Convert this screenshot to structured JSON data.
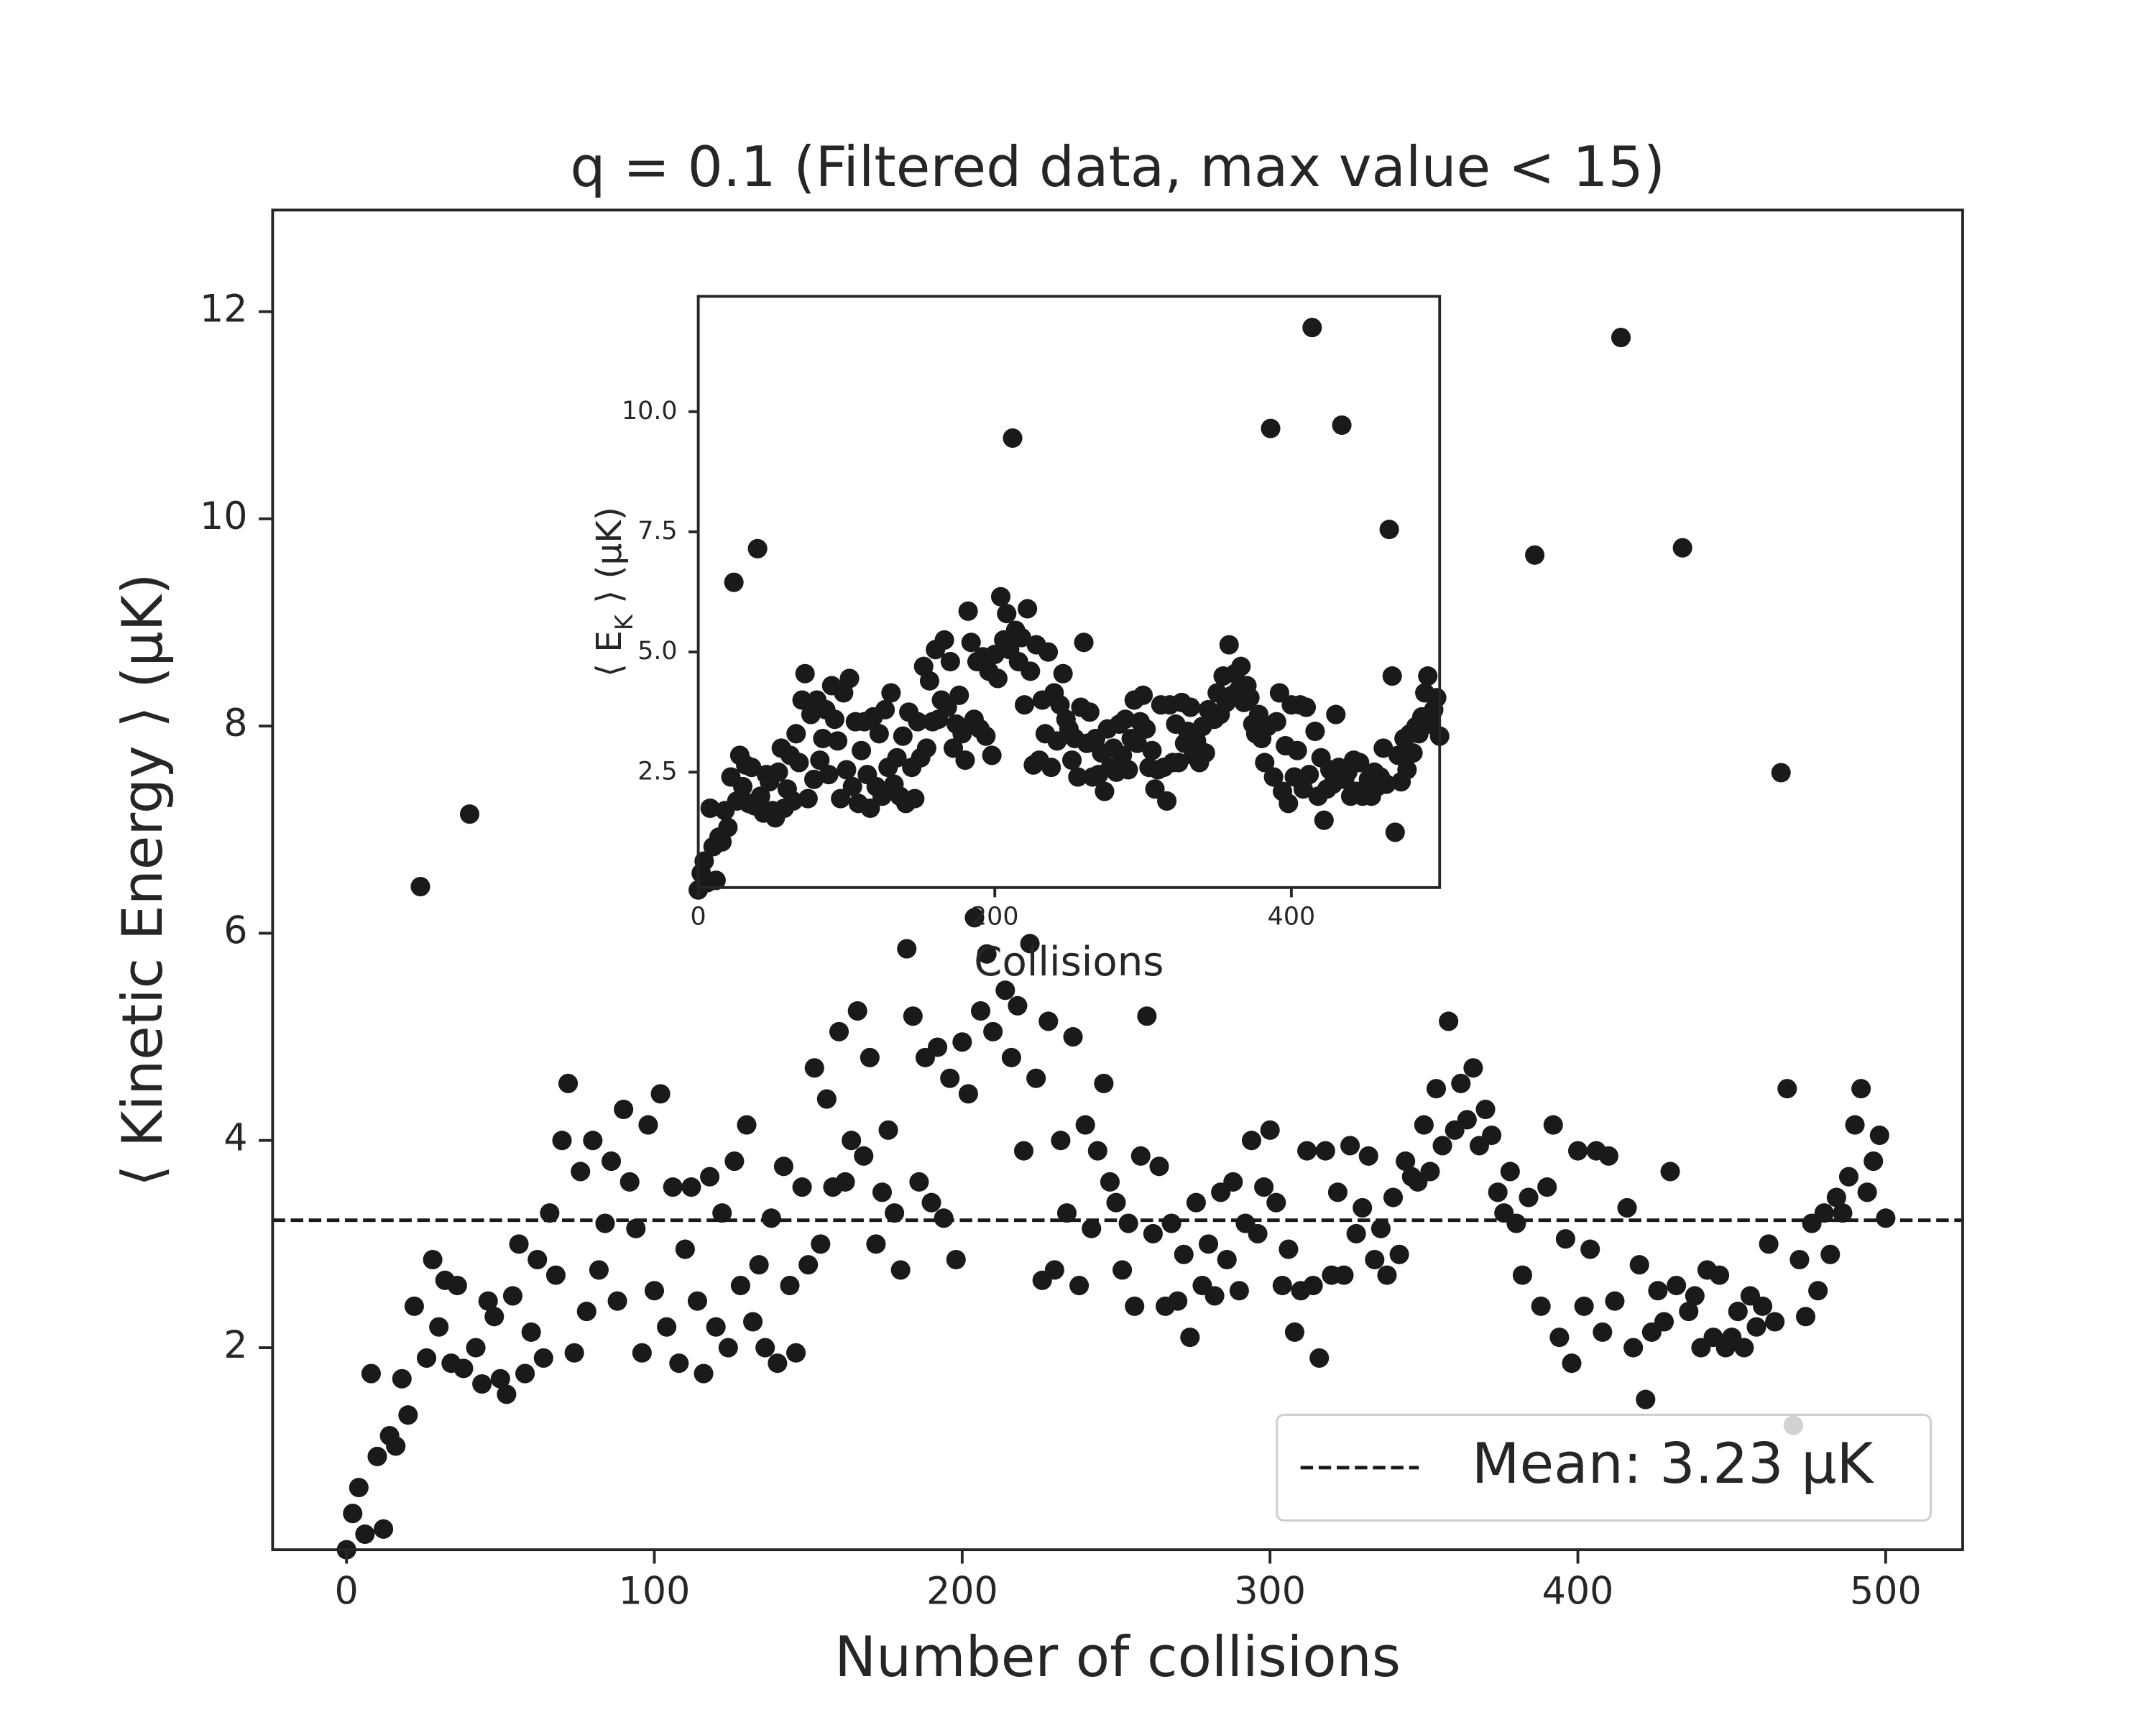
{
  "chart_data": [
    {
      "type": "scatter",
      "title": "q = 0.1 (Filtered data, max value < 15)",
      "xlabel": "Number of collisions",
      "ylabel": "⟨ Kinetic Energy ⟩ (µK)",
      "x": [
        0,
        2,
        4,
        6,
        8,
        10,
        12,
        14,
        16,
        18,
        20,
        22,
        24,
        26,
        28,
        30,
        32,
        34,
        36,
        38,
        40,
        42,
        44,
        46,
        48,
        50,
        52,
        54,
        56,
        58,
        60,
        62,
        64,
        66,
        68,
        70,
        72,
        74,
        76,
        78,
        80,
        82,
        84,
        86,
        88,
        90,
        92,
        94,
        96,
        98,
        100,
        102,
        104,
        106,
        108,
        110,
        112,
        114,
        116,
        118,
        120,
        122,
        124,
        126,
        128,
        130,
        132,
        134,
        136,
        138,
        140,
        142,
        144,
        146,
        148,
        150,
        152,
        154,
        156,
        158,
        160,
        162,
        164,
        166,
        168,
        170,
        172,
        174,
        176,
        178,
        180,
        182,
        184,
        186,
        188,
        190,
        192,
        194,
        196,
        198,
        200,
        202,
        204,
        206,
        208,
        210,
        212,
        214,
        216,
        218,
        220,
        222,
        224,
        226,
        228,
        230,
        232,
        234,
        236,
        238,
        240,
        242,
        244,
        246,
        248,
        250,
        252,
        254,
        256,
        258,
        260,
        262,
        264,
        266,
        268,
        270,
        272,
        274,
        276,
        278,
        280,
        282,
        284,
        286,
        288,
        290,
        292,
        294,
        296,
        298,
        300,
        302,
        304,
        306,
        308,
        310,
        312,
        314,
        316,
        318,
        320,
        322,
        324,
        326,
        328,
        330,
        332,
        334,
        336,
        338,
        340,
        342,
        344,
        346,
        348,
        350,
        352,
        354,
        356,
        358,
        360,
        362,
        364,
        366,
        368,
        370,
        372,
        374,
        376,
        378,
        380,
        382,
        384,
        386,
        388,
        390,
        392,
        394,
        396,
        398,
        400,
        402,
        404,
        406,
        408,
        410,
        412,
        414,
        416,
        418,
        420,
        422,
        424,
        426,
        428,
        430,
        432,
        434,
        436,
        438,
        440,
        442,
        444,
        446,
        448,
        450,
        452,
        454,
        456,
        458,
        460,
        462,
        464,
        466,
        468,
        470,
        472,
        474,
        476,
        478,
        480,
        482,
        484,
        486,
        488,
        490,
        492,
        494,
        496,
        498,
        500
      ],
      "values": [
        0.05,
        0.4,
        0.65,
        0.2,
        1.75,
        0.95,
        0.25,
        1.15,
        1.05,
        1.7,
        1.35,
        2.4,
        6.45,
        1.9,
        2.85,
        2.2,
        2.65,
        1.85,
        2.6,
        1.8,
        7.15,
        2.0,
        1.65,
        2.45,
        2.3,
        1.7,
        1.55,
        2.5,
        3.0,
        1.75,
        2.15,
        2.85,
        1.9,
        3.3,
        2.7,
        4.0,
        4.55,
        1.95,
        3.7,
        2.35,
        4.0,
        2.75,
        3.2,
        3.8,
        2.45,
        4.3,
        3.6,
        3.15,
        1.95,
        4.15,
        2.55,
        4.45,
        2.2,
        3.55,
        1.85,
        2.95,
        3.55,
        2.45,
        1.75,
        3.65,
        2.2,
        3.3,
        2.0,
        3.8,
        2.6,
        4.15,
        2.25,
        2.8,
        2.0,
        3.25,
        1.85,
        3.75,
        2.6,
        1.95,
        3.55,
        2.8,
        4.7,
        3.0,
        4.4,
        3.55,
        5.05,
        3.6,
        4.0,
        5.25,
        3.85,
        4.8,
        3.0,
        3.5,
        4.1,
        3.3,
        2.75,
        5.85,
        5.2,
        3.6,
        4.8,
        3.4,
        4.9,
        3.25,
        4.6,
        2.85,
        4.95,
        4.45,
        6.15,
        5.25,
        5.8,
        5.05,
        9.45,
        5.45,
        4.8,
        5.3,
        3.9,
        5.9,
        4.6,
        2.65,
        5.15,
        2.75,
        4.0,
        3.3,
        5.0,
        2.6,
        4.15,
        3.15,
        3.9,
        4.55,
        3.6,
        3.4,
        2.75,
        3.2,
        2.4,
        3.85,
        5.2,
        3.1,
        3.75,
        2.4,
        3.2,
        2.45,
        2.9,
        2.1,
        3.4,
        2.6,
        3.0,
        2.5,
        3.5,
        2.85,
        3.6,
        2.55,
        3.2,
        4.0,
        3.1,
        3.55,
        4.1,
        3.4,
        2.6,
        2.95,
        2.15,
        2.55,
        3.9,
        2.6,
        1.9,
        3.9,
        2.7,
        3.5,
        2.7,
        3.95,
        3.1,
        3.35,
        3.85,
        2.85,
        3.15,
        2.7,
        3.45,
        2.9,
        3.8,
        3.65,
        3.6,
        4.15,
        3.7,
        4.5,
        3.95,
        5.15,
        4.1,
        4.55,
        4.2,
        4.7,
        3.95,
        4.3,
        4.05,
        3.5,
        3.3,
        3.7,
        3.2,
        2.7,
        3.45,
        9.65,
        2.4,
        3.55,
        4.15,
        2.1,
        3.05,
        1.85,
        3.9,
        2.4,
        2.95,
        3.9,
        2.15,
        3.85,
        2.45,
        11.75,
        3.35,
        2.0,
        2.8,
        1.5,
        2.15,
        2.55,
        2.25,
        3.7,
        2.6,
        9.72,
        2.35,
        2.5,
        2.0,
        2.75,
        2.1,
        2.7,
        2.0,
        2.1,
        2.35,
        2.0,
        2.5,
        2.2,
        2.4,
        3.0,
        2.25,
        7.55,
        4.5,
        1.25,
        2.85,
        2.3,
        3.2,
        2.55,
        3.3,
        2.9,
        3.45,
        3.3,
        3.65,
        4.15,
        4.5,
        3.5,
        3.8,
        4.05,
        3.25
      ],
      "color": "#1a1a1a",
      "xlim": [
        -24,
        525
      ],
      "ylim": [
        0.05,
        12.98
      ],
      "xticks": [
        0,
        100,
        200,
        300,
        400,
        500
      ],
      "yticks": [
        2,
        4,
        6,
        8,
        10,
        12
      ],
      "hlines": [
        {
          "name": "Mean: 3.23 µK",
          "value": 3.23,
          "style": "dashed",
          "color": "#1a1a1a"
        }
      ],
      "legend": "lower right"
    },
    {
      "type": "scatter",
      "inset": true,
      "xlabel": "Collisions",
      "ylabel": "⟨ E_K ⟩ (µK)",
      "x": [
        0,
        2,
        4,
        6,
        8,
        10,
        12,
        14,
        16,
        18,
        20,
        22,
        24,
        26,
        28,
        30,
        32,
        34,
        36,
        38,
        40,
        42,
        44,
        46,
        48,
        50,
        52,
        54,
        56,
        58,
        60,
        62,
        64,
        66,
        68,
        70,
        72,
        74,
        76,
        78,
        80,
        82,
        84,
        86,
        88,
        90,
        92,
        94,
        96,
        98,
        100,
        102,
        104,
        106,
        108,
        110,
        112,
        114,
        116,
        118,
        120,
        122,
        124,
        126,
        128,
        130,
        132,
        134,
        136,
        138,
        140,
        142,
        144,
        146,
        148,
        150,
        152,
        154,
        156,
        158,
        160,
        162,
        164,
        166,
        168,
        170,
        172,
        174,
        176,
        178,
        180,
        182,
        184,
        186,
        188,
        190,
        192,
        194,
        196,
        198,
        200,
        202,
        204,
        206,
        208,
        210,
        212,
        214,
        216,
        218,
        220,
        222,
        224,
        226,
        228,
        230,
        232,
        234,
        236,
        238,
        240,
        242,
        244,
        246,
        248,
        250,
        252,
        254,
        256,
        258,
        260,
        262,
        264,
        266,
        268,
        270,
        272,
        274,
        276,
        278,
        280,
        282,
        284,
        286,
        288,
        290,
        292,
        294,
        296,
        298,
        300,
        302,
        304,
        306,
        308,
        310,
        312,
        314,
        316,
        318,
        320,
        322,
        324,
        326,
        328,
        330,
        332,
        334,
        336,
        338,
        340,
        342,
        344,
        346,
        348,
        350,
        352,
        354,
        356,
        358,
        360,
        362,
        364,
        366,
        368,
        370,
        372,
        374,
        376,
        378,
        380,
        382,
        384,
        386,
        388,
        390,
        392,
        394,
        396,
        398,
        400,
        402,
        404,
        406,
        408,
        410,
        412,
        414,
        416,
        418,
        420,
        422,
        424,
        426,
        428,
        430,
        432,
        434,
        436,
        438,
        440,
        442,
        444,
        446,
        448,
        450,
        452,
        454,
        456,
        458,
        460,
        462,
        464,
        466,
        468,
        470,
        472,
        474,
        476,
        478,
        480,
        482,
        484,
        486,
        488,
        490,
        492,
        494,
        496,
        498,
        500
      ],
      "values": [
        0.05,
        0.4,
        0.65,
        0.2,
        1.75,
        0.95,
        0.25,
        1.15,
        1.05,
        1.7,
        1.35,
        2.4,
        6.45,
        1.9,
        2.85,
        2.2,
        2.65,
        1.85,
        2.6,
        1.8,
        7.15,
        2.0,
        1.65,
        2.45,
        2.3,
        1.7,
        1.55,
        2.5,
        3.0,
        1.75,
        2.15,
        2.85,
        1.9,
        3.3,
        2.7,
        4.0,
        4.55,
        1.95,
        3.7,
        2.35,
        4.0,
        2.75,
        3.2,
        3.8,
        2.45,
        4.3,
        3.6,
        3.15,
        1.95,
        4.15,
        2.55,
        4.45,
        2.2,
        3.55,
        1.85,
        2.95,
        3.55,
        2.45,
        1.75,
        3.65,
        2.2,
        3.3,
        2.0,
        3.8,
        2.6,
        4.15,
        2.25,
        2.8,
        2.0,
        3.25,
        1.85,
        3.75,
        2.6,
        1.95,
        3.55,
        2.8,
        4.7,
        3.0,
        4.4,
        3.55,
        5.05,
        3.6,
        4.0,
        5.25,
        3.85,
        4.8,
        3.0,
        3.5,
        4.1,
        3.3,
        2.75,
        5.85,
        5.2,
        3.6,
        4.8,
        3.4,
        4.9,
        3.25,
        4.6,
        2.85,
        4.95,
        4.45,
        6.15,
        5.25,
        5.8,
        5.05,
        9.45,
        5.45,
        4.8,
        5.3,
        3.9,
        5.9,
        4.6,
        2.65,
        5.15,
        2.75,
        4.0,
        3.3,
        5.0,
        2.6,
        4.15,
        3.15,
        3.9,
        4.55,
        3.6,
        3.4,
        2.75,
        3.2,
        2.4,
        3.85,
        5.2,
        3.1,
        3.75,
        2.4,
        3.2,
        2.45,
        2.9,
        2.1,
        3.4,
        2.6,
        3.0,
        2.5,
        3.5,
        2.85,
        3.6,
        2.55,
        3.2,
        4.0,
        3.1,
        3.55,
        4.1,
        3.4,
        2.6,
        2.95,
        2.15,
        2.55,
        3.9,
        2.6,
        1.9,
        3.9,
        2.7,
        3.5,
        2.7,
        3.95,
        3.1,
        3.35,
        3.85,
        2.85,
        3.15,
        2.7,
        3.45,
        2.9,
        3.8,
        3.65,
        3.6,
        4.15,
        3.7,
        4.5,
        3.95,
        5.15,
        4.1,
        4.55,
        4.2,
        4.7,
        3.95,
        4.3,
        4.05,
        3.5,
        3.3,
        3.7,
        3.2,
        2.7,
        3.45,
        9.65,
        2.4,
        3.55,
        4.15,
        2.1,
        3.05,
        1.85,
        3.9,
        2.4,
        2.95,
        3.9,
        2.15,
        3.85,
        2.45,
        11.75,
        3.35,
        2.0,
        2.8,
        1.5,
        2.15,
        2.55,
        2.25,
        3.7,
        2.6,
        9.72,
        2.35,
        2.5,
        2.0,
        2.75,
        2.1,
        2.7,
        2.0,
        2.1,
        2.35,
        2.0,
        2.5,
        2.2,
        2.4,
        3.0,
        2.25,
        7.55,
        4.5,
        1.25,
        2.85,
        2.3,
        3.2,
        2.55,
        3.3,
        2.9,
        3.45,
        3.3,
        3.65,
        4.15,
        4.5,
        3.5,
        3.8,
        4.05,
        3.25
      ],
      "color": "#1a1a1a",
      "xlim": [
        0,
        500
      ],
      "ylim": [
        0.1,
        12.4
      ],
      "xticks": [
        0,
        200,
        400
      ],
      "yticks": [
        2.5,
        {
          "value": 5,
          "label": "5.0"
        },
        7.5,
        {
          "value": 10,
          "label": "10.0"
        }
      ]
    }
  ]
}
